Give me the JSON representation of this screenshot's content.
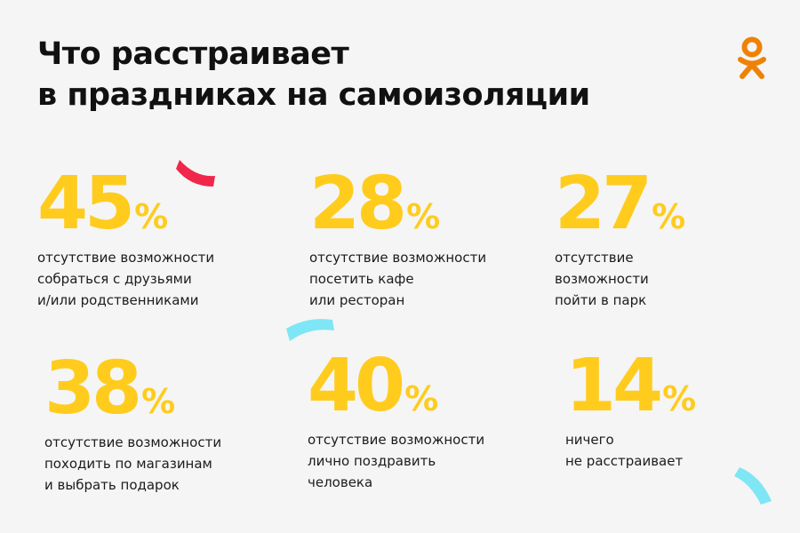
{
  "title": {
    "line1": "Что расстраивает",
    "line2": "в праздниках на самоизоляции"
  },
  "logo": {
    "icon": "odnoklassniki-logo-icon",
    "color": "#ee8208"
  },
  "accent_color": "#ffcc1d",
  "stats": [
    {
      "value": "45",
      "unit": "%",
      "lines": [
        "отсутствие возможности",
        "собраться с друзьями",
        "и/или родственниками"
      ]
    },
    {
      "value": "28",
      "unit": "%",
      "lines": [
        "отсутствие возможности",
        "посетить кафе",
        "или ресторан"
      ]
    },
    {
      "value": "27",
      "unit": "%",
      "lines": [
        "отсутствие",
        "возможности",
        "пойти в парк"
      ]
    },
    {
      "value": "38",
      "unit": "%",
      "lines": [
        "отсутствие возможности",
        "походить по магазинам",
        "и выбрать подарок"
      ]
    },
    {
      "value": "40",
      "unit": "%",
      "lines": [
        "отсутствие возможности",
        "лично поздравить",
        "человека"
      ]
    },
    {
      "value": "14",
      "unit": "%",
      "lines": [
        "ничего",
        "не расстраивает"
      ]
    }
  ],
  "decorations": {
    "confetti_red": "#f0264b",
    "confetti_cyan": "#7ee6f5"
  }
}
